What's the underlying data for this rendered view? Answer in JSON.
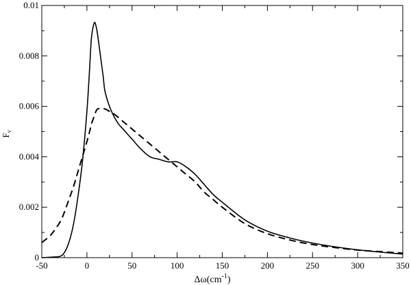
{
  "chart_data": {
    "type": "line",
    "title": "",
    "xlabel_main": "Δω(cm",
    "xlabel_sup": "-1",
    "xlabel_end": ")",
    "ylabel_main": "F",
    "ylabel_sub": "ν",
    "xlim": [
      -50,
      350
    ],
    "ylim": [
      0,
      0.01
    ],
    "xticks": [
      -50,
      0,
      50,
      100,
      150,
      200,
      250,
      300,
      350
    ],
    "yticks": [
      0,
      0.002,
      0.004,
      0.006,
      0.008,
      0.01
    ],
    "xtick_labels": [
      "-50",
      "0",
      "50",
      "100",
      "150",
      "200",
      "250",
      "300",
      "350"
    ],
    "ytick_labels": [
      "0",
      "0.002",
      "0.004",
      "0.006",
      "0.008",
      "0.01"
    ],
    "grid": false,
    "series": [
      {
        "style": "solid",
        "x": [
          -50,
          -40,
          -30,
          -25,
          -20,
          -15,
          -10,
          -5,
          0,
          3,
          5,
          8,
          10,
          12,
          15,
          18,
          20,
          25,
          30,
          35,
          40,
          50,
          60,
          70,
          80,
          90,
          100,
          110,
          120,
          130,
          140,
          150,
          175,
          200,
          225,
          250,
          275,
          300,
          325,
          350
        ],
        "y": [
          0.0,
          2e-05,
          5e-05,
          0.0002,
          0.0006,
          0.0013,
          0.0024,
          0.0038,
          0.0058,
          0.0075,
          0.0087,
          0.0093,
          0.0092,
          0.0088,
          0.008,
          0.0072,
          0.0066,
          0.006,
          0.0056,
          0.0053,
          0.0051,
          0.0047,
          0.0043,
          0.004,
          0.0039,
          0.0038,
          0.0038,
          0.0036,
          0.0033,
          0.0029,
          0.0025,
          0.0022,
          0.0015,
          0.00105,
          0.00078,
          0.00058,
          0.00043,
          0.00031,
          0.00022,
          0.00014
        ]
      },
      {
        "style": "dashed",
        "x": [
          -50,
          -40,
          -30,
          -25,
          -20,
          -15,
          -10,
          -5,
          0,
          3,
          5,
          8,
          10,
          12,
          15,
          20,
          25,
          30,
          40,
          50,
          60,
          70,
          80,
          90,
          100,
          110,
          120,
          130,
          140,
          150,
          175,
          200,
          225,
          250,
          275,
          300,
          325,
          350
        ],
        "y": [
          0.0006,
          0.0009,
          0.0014,
          0.0018,
          0.0023,
          0.0028,
          0.0034,
          0.004,
          0.0046,
          0.005,
          0.0053,
          0.0056,
          0.0058,
          0.0059,
          0.0059,
          0.0059,
          0.0058,
          0.0057,
          0.0054,
          0.0051,
          0.0048,
          0.0045,
          0.0042,
          0.0039,
          0.0036,
          0.0033,
          0.003,
          0.0026,
          0.0023,
          0.002,
          0.00135,
          0.00095,
          0.0007,
          0.00052,
          0.0004,
          0.0003,
          0.00024,
          0.00018
        ]
      }
    ]
  }
}
